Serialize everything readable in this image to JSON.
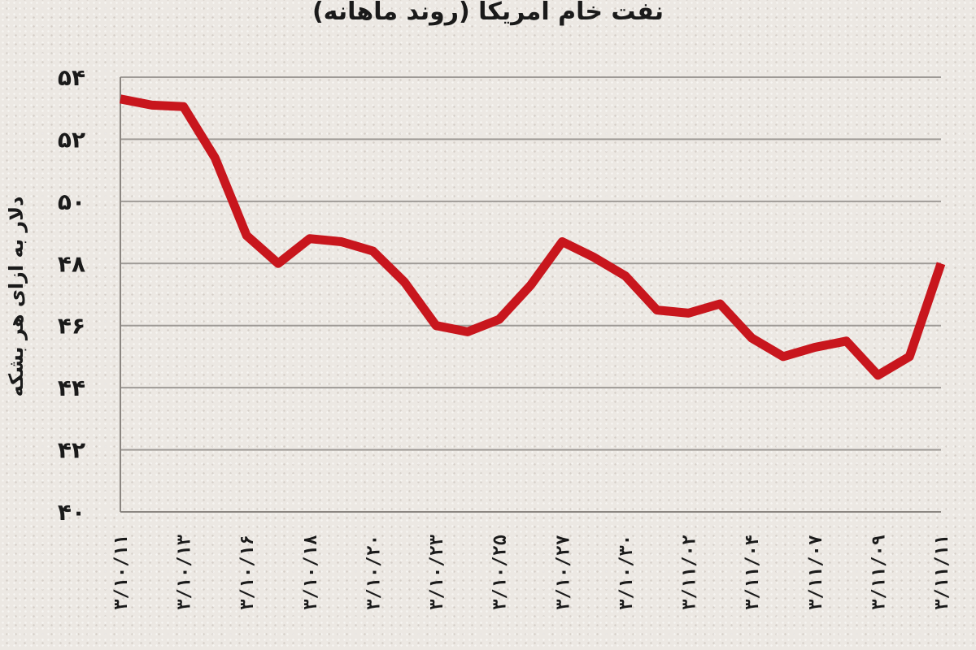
{
  "chart_data": {
    "type": "line",
    "title": "نفت خام آمریکا (روند ماهانه)",
    "xlabel": "",
    "ylabel": "دلار به ازای هر بشکه",
    "ylim": [
      40,
      54
    ],
    "y_ticks": [
      "۴۰",
      "۴۲",
      "۴۴",
      "۴۶",
      "۴۸",
      "۵۰",
      "۵۲",
      "۵۴"
    ],
    "grid": true,
    "line_color": "#c8161d",
    "categories": [
      "۳/۱۰/۱۱",
      "",
      "۳/۱۰/۱۳",
      "",
      "۳/۱۰/۱۶",
      "",
      "۳/۱۰/۱۸",
      "",
      "۳/۱۰/۲۰",
      "",
      "۳/۱۰/۲۳",
      "",
      "۳/۱۰/۲۵",
      "",
      "۳/۱۰/۲۷",
      "",
      "۳/۱۰/۳۰",
      "",
      "۳/۱۱/۰۲",
      "",
      "۳/۱۱/۰۴",
      "",
      "۳/۱۱/۰۷",
      "",
      "۳/۱۱/۰۹",
      "",
      "۳/۱۱/۱۱"
    ],
    "series": [
      {
        "values": [
          53.3,
          53.1,
          53.05,
          51.4,
          48.9,
          48.0,
          48.8,
          48.7,
          48.4,
          47.4,
          46.0,
          45.8,
          46.2,
          47.3,
          48.7,
          48.2,
          47.6,
          46.5,
          46.4,
          46.7,
          45.6,
          45.0,
          45.3,
          45.5,
          44.4,
          45.0,
          48.0
        ]
      }
    ]
  }
}
